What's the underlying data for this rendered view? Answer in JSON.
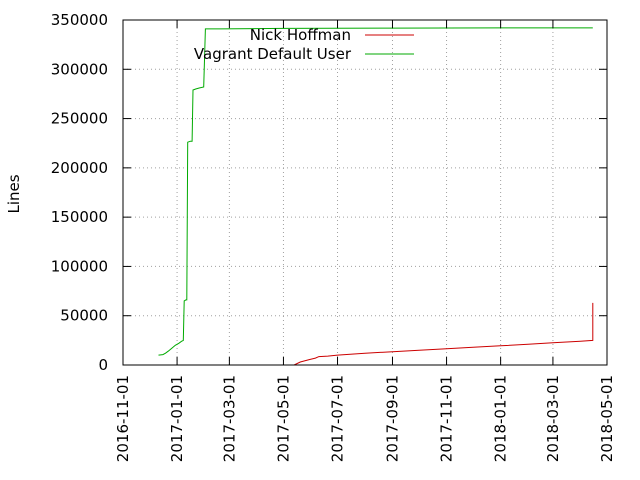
{
  "chart_data": {
    "type": "line",
    "title": "",
    "xlabel": "",
    "ylabel": "Lines",
    "x_axis_type": "date",
    "xlim": [
      "2016-11-01",
      "2018-05-01"
    ],
    "ylim": [
      0,
      350000
    ],
    "x_ticks": [
      "2016-11-01",
      "2017-01-01",
      "2017-03-01",
      "2017-05-01",
      "2017-07-01",
      "2017-09-01",
      "2017-11-01",
      "2018-01-01",
      "2018-03-01",
      "2018-05-01"
    ],
    "y_ticks": [
      0,
      50000,
      100000,
      150000,
      200000,
      250000,
      300000,
      350000
    ],
    "y_tick_labels": [
      "0",
      "50000",
      "100000",
      "150000",
      "200000",
      "250000",
      "300000",
      "350000"
    ],
    "grid": true,
    "legend_position": "top-right",
    "series": [
      {
        "name": "Nick Hoffman",
        "color": "#cc0000",
        "points": [
          [
            "2017-05-13",
            0
          ],
          [
            "2017-05-20",
            3000
          ],
          [
            "2017-05-30",
            5500
          ],
          [
            "2017-06-06",
            7000
          ],
          [
            "2017-06-10",
            8500
          ],
          [
            "2017-06-20",
            9000
          ],
          [
            "2017-07-01",
            10000
          ],
          [
            "2017-08-01",
            12000
          ],
          [
            "2017-09-01",
            13500
          ],
          [
            "2017-10-01",
            15000
          ],
          [
            "2017-11-01",
            16500
          ],
          [
            "2017-12-01",
            18000
          ],
          [
            "2018-01-01",
            19500
          ],
          [
            "2018-02-01",
            21000
          ],
          [
            "2018-03-01",
            22500
          ],
          [
            "2018-04-01",
            24000
          ],
          [
            "2018-04-15",
            25000
          ],
          [
            "2018-04-15",
            63000
          ]
        ]
      },
      {
        "name": "Vagrant Default User",
        "color": "#00aa00",
        "points": [
          [
            "2016-12-11",
            10000
          ],
          [
            "2016-12-16",
            10500
          ],
          [
            "2016-12-19",
            12000
          ],
          [
            "2016-12-22",
            14000
          ],
          [
            "2016-12-26",
            17000
          ],
          [
            "2016-12-30",
            20000
          ],
          [
            "2017-01-03",
            22000
          ],
          [
            "2017-01-06",
            24000
          ],
          [
            "2017-01-08",
            25000
          ],
          [
            "2017-01-09",
            65000
          ],
          [
            "2017-01-11",
            66000
          ],
          [
            "2017-01-12",
            66000
          ],
          [
            "2017-01-13",
            226000
          ],
          [
            "2017-01-16",
            227000
          ],
          [
            "2017-01-18",
            227000
          ],
          [
            "2017-01-19",
            279000
          ],
          [
            "2017-01-22",
            280000
          ],
          [
            "2017-01-26",
            281000
          ],
          [
            "2017-01-31",
            282000
          ],
          [
            "2017-02-02",
            341000
          ],
          [
            "2017-02-20",
            341000
          ],
          [
            "2017-05-01",
            341500
          ],
          [
            "2017-09-01",
            341800
          ],
          [
            "2018-01-01",
            342000
          ],
          [
            "2018-04-15",
            342000
          ]
        ]
      }
    ]
  }
}
